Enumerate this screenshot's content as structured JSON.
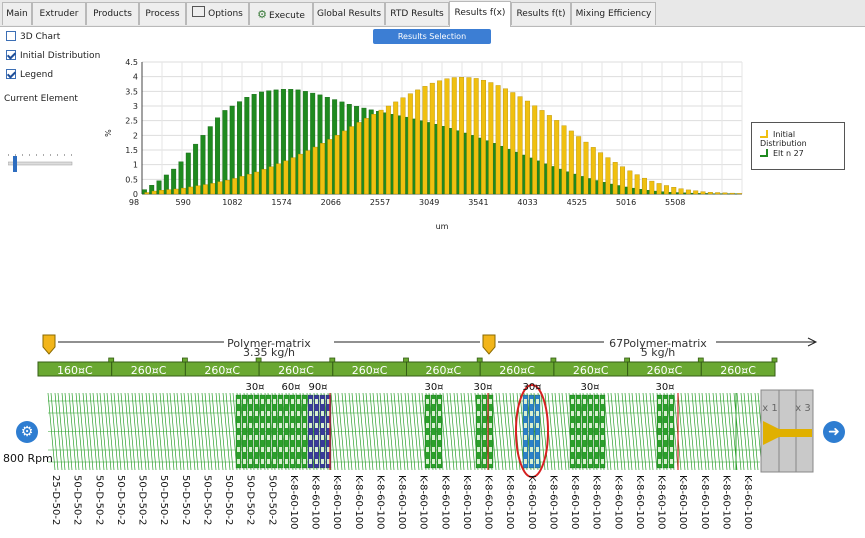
{
  "tabs": [
    {
      "label": "Main",
      "active": false,
      "icon": ""
    },
    {
      "label": "Extruder",
      "active": false,
      "icon": ""
    },
    {
      "label": "Products",
      "active": false,
      "icon": ""
    },
    {
      "label": "Process",
      "active": false,
      "icon": ""
    },
    {
      "label": "Options",
      "active": false,
      "icon": "options-icon"
    },
    {
      "label": "Execute",
      "active": false,
      "icon": "gear-icon"
    },
    {
      "label": "Global Results",
      "active": false,
      "icon": ""
    },
    {
      "label": "RTD Results",
      "active": false,
      "icon": ""
    },
    {
      "label": "Results f(x)",
      "active": true,
      "icon": ""
    },
    {
      "label": "Results f(t)",
      "active": false,
      "icon": ""
    },
    {
      "label": "Mixing Efficiency",
      "active": false,
      "icon": ""
    }
  ],
  "controls": {
    "chart3d": {
      "label": "3D Chart",
      "checked": false
    },
    "initial": {
      "label": "Initial Distribution",
      "checked": true
    },
    "legend": {
      "label": "Legend",
      "checked": true
    },
    "current_element_label": "Current Element",
    "selection_button": "Results Selection"
  },
  "chart_data": {
    "type": "bar",
    "xlabel": "um",
    "ylabel": "%",
    "ylim": [
      0,
      4.5
    ],
    "yticks": [
      "0",
      "0.5",
      "1",
      "1.5",
      "2",
      "2.5",
      "3",
      "3.5",
      "4",
      "4.5"
    ],
    "xtick_labels": [
      "98",
      "590",
      "1082",
      "1574",
      "2066",
      "2557",
      "3049",
      "3541",
      "4033",
      "4525",
      "5016",
      "5508"
    ],
    "legend_position": "right",
    "series": [
      {
        "name": "Initial Distribution",
        "color": "#f0c010",
        "values": [
          0.05,
          0.1,
          0.13,
          0.15,
          0.17,
          0.2,
          0.24,
          0.28,
          0.32,
          0.36,
          0.42,
          0.47,
          0.53,
          0.6,
          0.67,
          0.75,
          0.84,
          0.93,
          1.03,
          1.13,
          1.24,
          1.36,
          1.48,
          1.6,
          1.73,
          1.86,
          2.0,
          2.15,
          2.3,
          2.44,
          2.58,
          2.72,
          2.86,
          3.0,
          3.14,
          3.28,
          3.42,
          3.55,
          3.67,
          3.78,
          3.86,
          3.93,
          3.97,
          3.98,
          3.97,
          3.94,
          3.88,
          3.8,
          3.7,
          3.59,
          3.46,
          3.32,
          3.17,
          3.01,
          2.85,
          2.68,
          2.51,
          2.33,
          2.15,
          1.96,
          1.77,
          1.59,
          1.41,
          1.24,
          1.08,
          0.93,
          0.79,
          0.66,
          0.54,
          0.44,
          0.36,
          0.29,
          0.23,
          0.18,
          0.14,
          0.11,
          0.08,
          0.06,
          0.05,
          0.04,
          0.03,
          0.02
        ]
      },
      {
        "name": "Elt n 27",
        "color": "#1f8a1f",
        "values": [
          0.15,
          0.3,
          0.45,
          0.65,
          0.85,
          1.1,
          1.4,
          1.7,
          2.0,
          2.3,
          2.6,
          2.85,
          3.0,
          3.15,
          3.3,
          3.4,
          3.48,
          3.52,
          3.55,
          3.57,
          3.57,
          3.55,
          3.5,
          3.44,
          3.38,
          3.3,
          3.22,
          3.14,
          3.06,
          2.99,
          2.93,
          2.87,
          2.82,
          2.77,
          2.72,
          2.67,
          2.62,
          2.56,
          2.5,
          2.44,
          2.38,
          2.31,
          2.24,
          2.16,
          2.08,
          2.0,
          1.91,
          1.82,
          1.73,
          1.63,
          1.53,
          1.43,
          1.33,
          1.23,
          1.13,
          1.03,
          0.94,
          0.85,
          0.76,
          0.68,
          0.6,
          0.53,
          0.46,
          0.4,
          0.34,
          0.29,
          0.24,
          0.2,
          0.16,
          0.13,
          0.1,
          0.08,
          0.06,
          0.05,
          0.04,
          0.03,
          0.02,
          0.02,
          0.01,
          0.01,
          0.01,
          0.01
        ]
      }
    ]
  },
  "screw": {
    "rpm_label": "800 Rpm",
    "feed1_label": "Polymer-matrix",
    "feed1_rate": "3.35 kg/h",
    "feed2_label": "67Polymer-matrix",
    "feed2_rate": "5 kg/h",
    "barrel_temps": [
      "160¤C",
      "260¤C",
      "260¤C",
      "260¤C",
      "260¤C",
      "260¤C",
      "260¤C",
      "260¤C",
      "260¤C",
      "260¤C"
    ],
    "angle_labels": [
      "30¤",
      "60¤",
      "90¤",
      "30¤",
      "30¤",
      "30¤",
      "30¤",
      "30¤"
    ],
    "die_labels": [
      "x 1",
      "x 3"
    ],
    "element_labels": [
      "25-D-50-2",
      "50-D-50-2",
      "50-D-50-2",
      "50-D-50-2",
      "50-D-50-2",
      "50-D-50-2",
      "50-D-50-2",
      "50-D-50-2",
      "50-D-50-2",
      "50-D-50-2",
      "50-D-50-2",
      "K-8-60-100",
      "K-8-60-100",
      "K-8-60-100",
      "K-8-60-100",
      "K-8-60-100",
      "K-8-60-100",
      "K-8-60-100",
      "K-8-60-100",
      "K-8-60-100",
      "K-8-60-100",
      "K-8-60-100",
      "K-8-60-100",
      "K-8-60-100",
      "K-8-60-100",
      "K-8-60-100",
      "K-8-60-100",
      "K-8-60-100",
      "K-8-60-100",
      "K-8-60-100",
      "K-8-60-100",
      "K-8-60-100",
      "K-8-60-100"
    ]
  },
  "colors": {
    "accent": "#3c7ed4",
    "barrel": "#6aa832",
    "screw": "#2ca02c",
    "kneading_blue": "#3a3a9a",
    "selected": "#d62020"
  }
}
